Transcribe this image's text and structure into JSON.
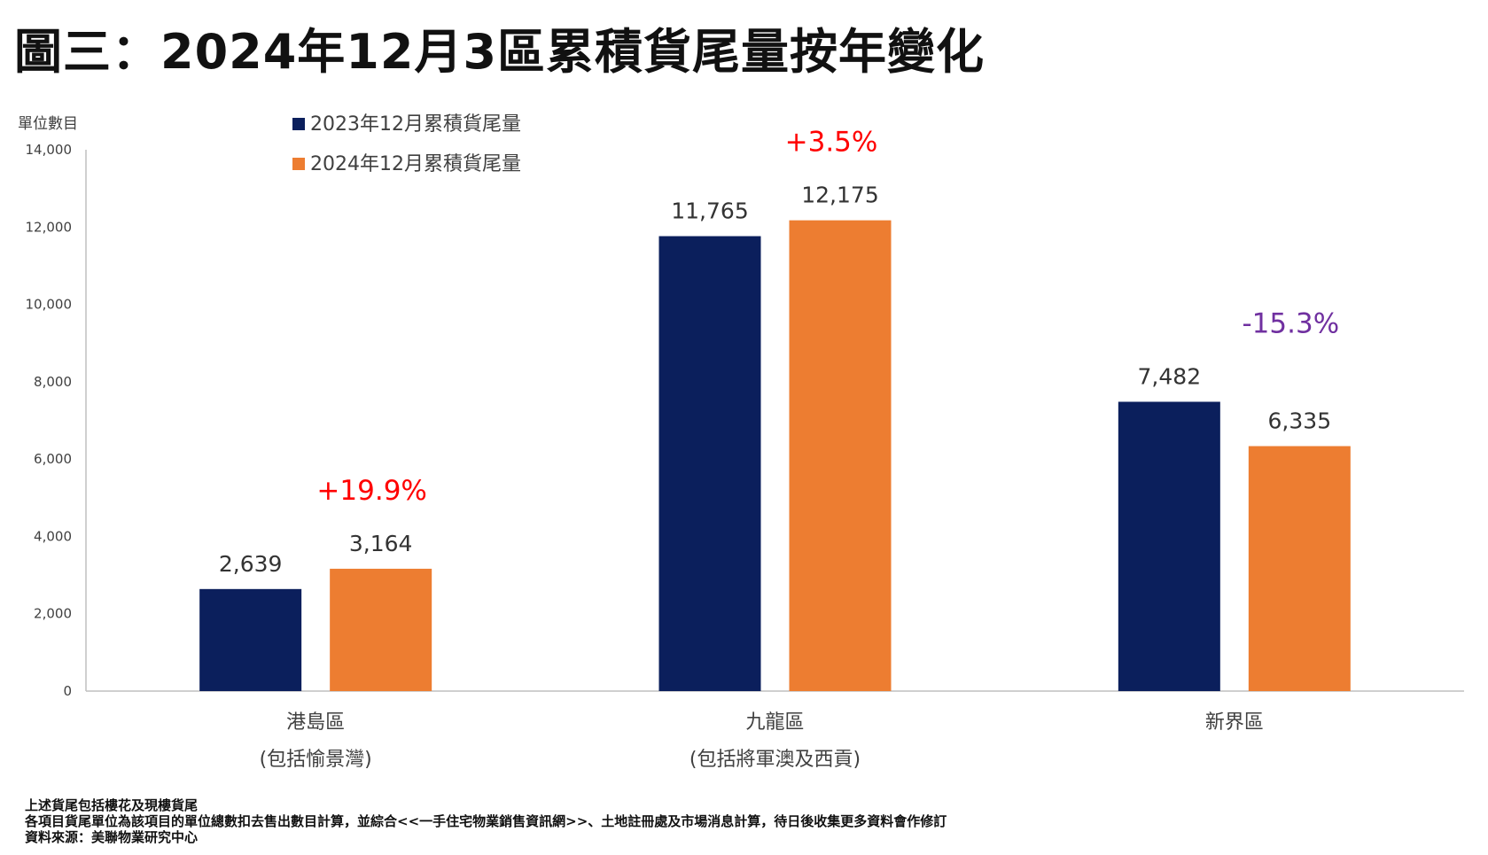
{
  "title": "圖三：2024年12月3區累積貨尾量按年變化",
  "colors": {
    "series_2023": "#0b1f5c",
    "series_2024": "#ed7d31",
    "change_positive": "#ff0000",
    "change_negative": "#7030a0"
  },
  "chart_data": {
    "type": "bar",
    "ylabel": "單位數目",
    "ylim": [
      0,
      14000
    ],
    "yticks": [
      "0",
      "2,000",
      "4,000",
      "6,000",
      "8,000",
      "10,000",
      "12,000",
      "14,000"
    ],
    "categories": [
      {
        "name": "港島區",
        "sub": "(包括愉景灣)"
      },
      {
        "name": "九龍區",
        "sub": "(包括將軍澳及西貢)"
      },
      {
        "name": "新界區",
        "sub": ""
      }
    ],
    "series": [
      {
        "name": "2023年12月累積貨尾量",
        "values": [
          2639,
          11765,
          7482
        ],
        "labels": [
          "2,639",
          "11,765",
          "7,482"
        ]
      },
      {
        "name": "2024年12月累積貨尾量",
        "values": [
          3164,
          12175,
          6335
        ],
        "labels": [
          "3,164",
          "12,175",
          "6,335"
        ]
      }
    ],
    "changes": [
      "+19.9%",
      "+3.5%",
      "-15.3%"
    ],
    "legend_position": "top-left",
    "grid": false
  },
  "notes": [
    "上述貨尾包括樓花及現樓貨尾",
    "各項目貨尾單位為該項目的單位總數扣去售出數目計算，並綜合<<一手住宅物業銷售資訊網>>、土地註冊處及市場消息計算，待日後收集更多資料會作修訂",
    "資料來源：美聯物業研究中心"
  ]
}
